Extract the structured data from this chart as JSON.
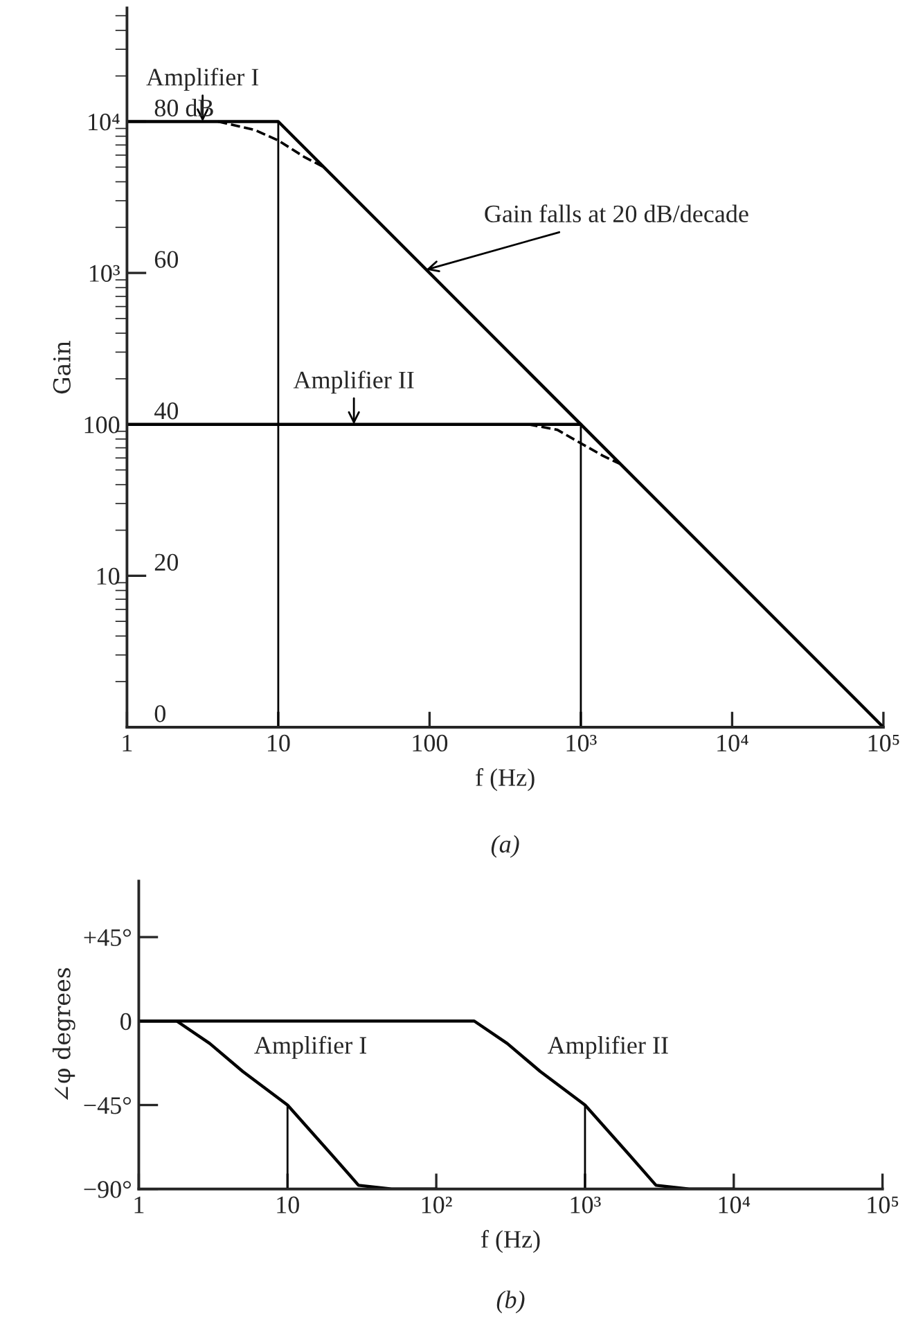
{
  "chart_data": [
    {
      "type": "line",
      "xlabel": "f (Hz)",
      "ylabel": "Gain",
      "log": "xy",
      "xlim": [
        1,
        100000
      ],
      "ylim": [
        1,
        56234
      ],
      "xticks": [
        1,
        10,
        100,
        {
          "value": 1000,
          "label": "10³"
        },
        {
          "value": 10000,
          "label": "10⁴"
        },
        {
          "value": 100000,
          "label": "10⁵"
        }
      ],
      "yticks": [
        10,
        100,
        {
          "value": 1000,
          "label": "10³"
        },
        {
          "value": 10000,
          "label": "10⁴"
        }
      ],
      "y2lim": [
        0,
        95
      ],
      "y2ticks": [
        0,
        20,
        40,
        60,
        {
          "value": 80,
          "label": "80 dB"
        }
      ],
      "grid": false,
      "series": [
        {
          "name": "Amplifier I",
          "color": "#000000",
          "line_style": "solid",
          "x": [
            1,
            10,
            100000
          ],
          "values": [
            10000,
            10000,
            1
          ]
        },
        {
          "name": "Amplifier II",
          "color": "#000000",
          "line_style": "solid",
          "x": [
            1,
            1000
          ],
          "values": [
            100,
            100
          ]
        },
        {
          "color": "#000000",
          "line_style": "dashed",
          "x": [
            4,
            7,
            10,
            15,
            20
          ],
          "values": [
            10000,
            8800,
            7500,
            5800,
            5000
          ]
        },
        {
          "color": "#000000",
          "line_style": "dashed",
          "x": [
            450,
            700,
            1000,
            1400,
            1800
          ],
          "values": [
            100,
            92,
            75,
            62,
            55
          ]
        }
      ],
      "ref_lines": [
        {
          "axis": "x",
          "value": 10
        },
        {
          "axis": "x",
          "value": 1000
        }
      ],
      "annotations": [
        {
          "text": "Gain falls at 20 dB/decade",
          "x": 95,
          "y": 1050
        },
        "(a)"
      ]
    },
    {
      "type": "line",
      "xlabel": "f (Hz)",
      "ylabel": "∠φ degrees",
      "log": "x",
      "xlim": [
        1,
        100000
      ],
      "ylim": [
        -90,
        75
      ],
      "xticks": [
        1,
        10,
        {
          "value": 100,
          "label": "10²"
        },
        {
          "value": 1000,
          "label": "10³"
        },
        {
          "value": 10000,
          "label": "10⁴"
        },
        {
          "value": 100000,
          "label": "10⁵"
        }
      ],
      "yticks": [
        {
          "value": 45,
          "label": "+45°"
        },
        0,
        {
          "value": -45,
          "label": "−45°"
        },
        {
          "value": -90,
          "label": "−90°"
        }
      ],
      "grid": false,
      "series": [
        {
          "name": "Amplifier I",
          "color": "#000000",
          "line_style": "solid",
          "x": [
            1,
            1.8,
            3,
            5,
            10,
            20,
            30,
            50,
            100
          ],
          "values": [
            0,
            0,
            -12,
            -27,
            -45,
            -72,
            -88,
            -90,
            -90
          ]
        },
        {
          "name": "Amplifier II",
          "color": "#000000",
          "line_style": "solid",
          "x": [
            1,
            180,
            300,
            500,
            1000,
            2000,
            3000,
            5000,
            10000
          ],
          "values": [
            0,
            0,
            -12,
            -27,
            -45,
            -72,
            -88,
            -90,
            -90
          ]
        }
      ],
      "ref_lines": [
        {
          "axis": "x",
          "value": 10
        },
        {
          "axis": "x",
          "value": 1000
        }
      ],
      "annotations": [
        "(b)"
      ]
    }
  ]
}
